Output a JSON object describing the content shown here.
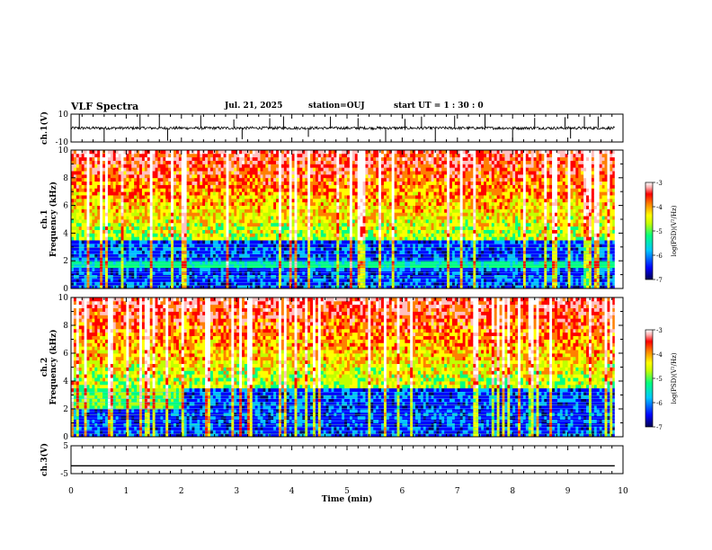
{
  "header": {
    "title": "VLF Spectra",
    "date": "Jul. 21, 2025",
    "station": "station=OUJ",
    "start_ut": "start UT =  1 : 30 : 0"
  },
  "chart_data": [
    {
      "type": "line",
      "panel": "ch1-waveform",
      "ylabel": "ch.1(V)",
      "ylim": [
        -10,
        10
      ],
      "yticks": [
        "10",
        "-10"
      ],
      "xlim": [
        0,
        10
      ],
      "baseline": 0,
      "noise_amplitude": 1,
      "spikes_min": [
        0.15,
        0.6,
        1.25,
        1.6,
        1.75,
        2.35,
        2.95,
        3.1,
        3.6,
        3.85,
        4.3,
        4.7,
        5.2,
        5.7,
        6.05,
        6.35,
        6.6,
        6.95,
        7.5,
        8.0,
        8.4,
        8.95,
        9.05,
        9.3,
        9.55
      ],
      "color": "#000000"
    },
    {
      "type": "heatmap",
      "panel": "ch1-spectrogram",
      "ylabel": "ch.1\nFrequency (kHz)",
      "ylim": [
        0,
        10
      ],
      "yticks": [
        "0",
        "2",
        "4",
        "6",
        "8",
        "10"
      ],
      "xlim": [
        0,
        10
      ],
      "colorbar": {
        "label": "log(PSD)(V²/Hz)",
        "range": [
          -7,
          -3
        ],
        "ticks": [
          "-3",
          "-4",
          "-5",
          "-6",
          "-7"
        ],
        "colormap": [
          "#000060",
          "#0000ff",
          "#00c0ff",
          "#00ff80",
          "#c0ff00",
          "#ffff00",
          "#ff8000",
          "#ff0000",
          "#ffc0c0",
          "#ffffff"
        ]
      },
      "low_band_khz": [
        0,
        3.5
      ],
      "features": "strong power 4-10 kHz, weak below 3.5 kHz, vertical impulsive bursts"
    },
    {
      "type": "heatmap",
      "panel": "ch2-spectrogram",
      "ylabel": "ch.2\nFrequency (kHz)",
      "ylim": [
        0,
        10
      ],
      "yticks": [
        "0",
        "2",
        "4",
        "6",
        "8",
        "10"
      ],
      "xlim": [
        0,
        10
      ],
      "colorbar": {
        "label": "log(PSD)(V²/Hz)",
        "range": [
          -7,
          -3
        ],
        "ticks": [
          "-3",
          "-4",
          "-5",
          "-6",
          "-7"
        ],
        "colormap": [
          "#000060",
          "#0000ff",
          "#00c0ff",
          "#00ff80",
          "#c0ff00",
          "#ffff00",
          "#ff8000",
          "#ff0000",
          "#ffc0c0",
          "#ffffff"
        ]
      },
      "low_band_khz": [
        0,
        3.5
      ],
      "features": "strong power 4-10 kHz, green band 2-3.5 kHz before 2 min"
    },
    {
      "type": "line",
      "panel": "ch3-waveform",
      "ylabel": "ch.3(V)",
      "ylim": [
        -5,
        5
      ],
      "yticks": [
        "5",
        "-5"
      ],
      "xlim": [
        0,
        10
      ],
      "x": [
        0,
        9.85
      ],
      "y": [
        -2.2,
        -2.2
      ],
      "color": "#000000"
    }
  ],
  "xaxis": {
    "label": "Time (min)",
    "ticks": [
      "0",
      "1",
      "2",
      "3",
      "4",
      "5",
      "6",
      "7",
      "8",
      "9",
      "10"
    ]
  }
}
